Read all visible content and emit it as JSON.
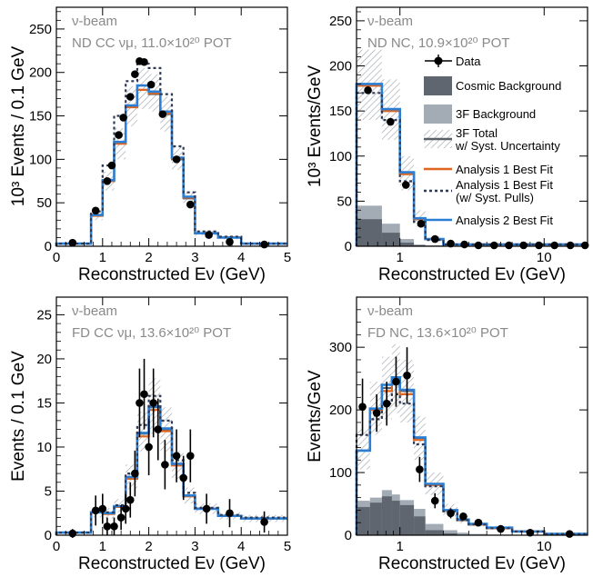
{
  "colors": {
    "data": "#000000",
    "cosmic": "#5f6670",
    "bkg3f": "#a3abb5",
    "band": "#9aa0a8",
    "total": "#5a6068",
    "a1": "#e0661f",
    "a1pull": "#2e3a55",
    "a2": "#2a7fd4",
    "annot": "#888888"
  },
  "legend": {
    "data": "Data",
    "cosmic": "Cosmic Background",
    "bkg3f": "3F Background",
    "total_line1": "3F Total",
    "total_line2": "w/ Syst. Uncertainty",
    "a1": "Analysis 1 Best Fit",
    "a1pull_line1": "Analysis 1 Best Fit",
    "a1pull_line2": "(w/ Syst. Pulls)",
    "a2": "Analysis 2 Best Fit"
  },
  "chart_data": [
    {
      "type": "histogram",
      "xscale": "linear",
      "xlim": [
        0,
        5
      ],
      "ylim": [
        0,
        275
      ],
      "xticks": [
        "0",
        "1",
        "2",
        "3",
        "4",
        "5"
      ],
      "xtick_vals": [
        0,
        1,
        2,
        3,
        4,
        5
      ],
      "yticks": [
        "0",
        "50",
        "100",
        "150",
        "200",
        "250"
      ],
      "ytick_vals": [
        0,
        50,
        100,
        150,
        200,
        250
      ],
      "ylabel": "10³ Events / 0.1 GeV",
      "xlabel": "Reconstructed Eν (GeV)",
      "annot1": "ν-beam",
      "annot2": "ND CC νμ, 11.0×10²⁰ POT",
      "edges": [
        0,
        0.75,
        1,
        1.25,
        1.5,
        1.75,
        2,
        2.25,
        2.5,
        2.75,
        3,
        3.5,
        4,
        5
      ],
      "total": [
        3,
        35,
        75,
        118,
        160,
        180,
        175,
        152,
        100,
        55,
        15,
        10,
        3
      ],
      "band_lo": [
        2,
        30,
        64,
        100,
        138,
        158,
        155,
        132,
        88,
        47,
        12,
        8,
        2
      ],
      "band_hi": [
        4,
        40,
        86,
        136,
        184,
        205,
        198,
        172,
        114,
        63,
        18,
        12,
        4
      ],
      "a1": [
        3,
        35,
        75,
        118,
        160,
        180,
        176,
        153,
        101,
        56,
        15,
        10,
        3
      ],
      "a1pull": [
        3,
        40,
        93,
        150,
        190,
        210,
        205,
        175,
        115,
        62,
        17,
        11,
        3
      ],
      "a2": [
        3,
        36,
        76,
        120,
        162,
        185,
        178,
        155,
        102,
        57,
        15,
        10,
        3
      ],
      "data_x": [
        0.35,
        0.85,
        1.1,
        1.2,
        1.35,
        1.45,
        1.6,
        1.7,
        1.8,
        1.9,
        2.05,
        2.3,
        2.6,
        2.9,
        3.3,
        3.75,
        4.5
      ],
      "data_y": [
        4,
        41,
        75,
        93,
        128,
        148,
        172,
        198,
        213,
        212,
        186,
        152,
        100,
        48,
        13,
        5,
        2
      ],
      "data_err": []
    },
    {
      "type": "histogram",
      "xscale": "log",
      "xlim": [
        0.5,
        20
      ],
      "ylim": [
        0,
        265
      ],
      "xticks": [
        "1",
        "10"
      ],
      "xtick_vals": [
        1,
        10
      ],
      "yticks": [
        "0",
        "50",
        "100",
        "150",
        "200",
        "250"
      ],
      "ytick_vals": [
        0,
        50,
        100,
        150,
        200,
        250
      ],
      "ylabel": "10³ Events/GeV",
      "xlabel": "Reconstructed Eν (GeV)",
      "annot1": "ν-beam",
      "annot2": "ND NC, 10.9×10²⁰ POT",
      "edges": [
        0.5,
        0.75,
        1.0,
        1.25,
        1.5,
        2.0,
        20
      ],
      "cosmic": [
        30,
        15,
        4,
        1,
        0,
        0
      ],
      "bkg3f": [
        45,
        25,
        8,
        2,
        1,
        0
      ],
      "total": [
        178,
        150,
        80,
        30,
        8,
        2
      ],
      "band_lo": [
        140,
        118,
        62,
        22,
        6,
        1
      ],
      "band_hi": [
        218,
        185,
        100,
        40,
        11,
        3
      ],
      "a1": [
        178,
        150,
        80,
        30,
        8,
        2
      ],
      "a1pull": [
        170,
        140,
        72,
        27,
        7,
        2
      ],
      "a2": [
        180,
        152,
        82,
        31,
        8,
        2
      ],
      "data_x": [
        0.6,
        0.86,
        1.1,
        1.4,
        1.75,
        2.25,
        2.8,
        3.5,
        4.5,
        5.7,
        7.2,
        9.2,
        11.8,
        15.2,
        19.2
      ],
      "data_y": [
        173,
        138,
        68,
        25,
        8,
        3,
        2,
        1,
        1,
        1,
        1,
        1,
        1,
        1,
        1
      ],
      "data_err": []
    },
    {
      "type": "histogram",
      "xscale": "linear",
      "xlim": [
        0,
        5
      ],
      "ylim": [
        0,
        27
      ],
      "xticks": [
        "0",
        "1",
        "2",
        "3",
        "4",
        "5"
      ],
      "xtick_vals": [
        0,
        1,
        2,
        3,
        4,
        5
      ],
      "yticks": [
        "0",
        "5",
        "10",
        "15",
        "20",
        "25"
      ],
      "ytick_vals": [
        0,
        5,
        10,
        15,
        20,
        25
      ],
      "ylabel": "Events / 0.1 GeV",
      "xlabel": "Reconstructed Eν (GeV)",
      "annot1": "ν-beam",
      "annot2": "FD CC νμ, 13.6×10²⁰ POT",
      "edges": [
        0,
        0.75,
        1,
        1.25,
        1.5,
        1.75,
        2,
        2.25,
        2.5,
        2.75,
        3,
        3.5,
        4,
        5
      ],
      "total": [
        0.3,
        2.6,
        2.5,
        3.3,
        6.5,
        11.5,
        14.5,
        12.0,
        8.0,
        4.5,
        3.0,
        2.2,
        1.9
      ],
      "band_lo": [
        0.2,
        2.0,
        1.9,
        2.6,
        5.2,
        9.5,
        11.5,
        9.5,
        6.4,
        3.6,
        2.4,
        1.8,
        1.5
      ],
      "band_hi": [
        0.4,
        3.2,
        3.1,
        4.1,
        8.0,
        14.0,
        17.8,
        14.5,
        9.6,
        5.4,
        3.6,
        2.6,
        2.3
      ],
      "a1": [
        0.3,
        2.6,
        2.4,
        3.2,
        6.4,
        11.2,
        14.2,
        11.8,
        7.9,
        4.4,
        3.0,
        2.2,
        1.9
      ],
      "a1pull": [
        0.3,
        2.8,
        2.6,
        3.4,
        7.0,
        12.5,
        15.8,
        13.0,
        8.5,
        4.8,
        3.1,
        2.3,
        2.0
      ],
      "a2": [
        0.3,
        2.6,
        2.5,
        3.3,
        6.6,
        11.6,
        14.6,
        12.1,
        8.1,
        4.5,
        3.0,
        2.2,
        1.9
      ],
      "data_x": [
        0.35,
        0.85,
        1.0,
        1.1,
        1.25,
        1.4,
        1.5,
        1.6,
        1.7,
        1.8,
        1.9,
        2.0,
        2.1,
        2.2,
        2.35,
        2.6,
        2.75,
        2.9,
        3.25,
        3.75,
        4.5
      ],
      "data_y": [
        0.2,
        2.8,
        3.0,
        1.0,
        1.0,
        2.0,
        3.0,
        4.0,
        7.0,
        15.0,
        16.0,
        10.0,
        15.0,
        12.0,
        8.0,
        9.0,
        6.5,
        9.0,
        3.0,
        2.5,
        1.5
      ],
      "data_err": [
        0.5,
        1.7,
        1.7,
        1.0,
        1.0,
        1.4,
        1.7,
        2.0,
        2.6,
        3.9,
        4.0,
        3.2,
        3.9,
        3.5,
        2.8,
        3.0,
        2.5,
        3.0,
        1.7,
        1.6,
        1.2
      ]
    },
    {
      "type": "histogram",
      "xscale": "log",
      "xlim": [
        0.5,
        20
      ],
      "ylim": [
        0,
        380
      ],
      "xticks": [
        "1",
        "10"
      ],
      "xtick_vals": [
        1,
        10
      ],
      "yticks": [
        "0",
        "100",
        "200",
        "300"
      ],
      "ytick_vals": [
        0,
        100,
        200,
        300
      ],
      "ylabel": "Events/GeV",
      "xlabel": "Reconstructed Eν (GeV)",
      "annot1": "ν-beam",
      "annot2": "FD NC, 13.6×10²⁰ POT",
      "edges": [
        0.5,
        0.62,
        0.75,
        0.88,
        1.0,
        1.25,
        1.5,
        2.0,
        2.5,
        3.0,
        4.0,
        6.0,
        10,
        20
      ],
      "cosmic": [
        45,
        52,
        62,
        55,
        48,
        30,
        8,
        3,
        1,
        0,
        0,
        0,
        0
      ],
      "bkg3f": [
        55,
        60,
        72,
        65,
        56,
        42,
        18,
        8,
        4,
        2,
        1,
        0,
        0
      ],
      "total": [
        135,
        200,
        235,
        250,
        230,
        155,
        82,
        40,
        25,
        18,
        12,
        6,
        2
      ],
      "band_lo": [
        105,
        160,
        185,
        195,
        180,
        120,
        64,
        30,
        19,
        14,
        9,
        5,
        1
      ],
      "band_hi": [
        170,
        245,
        285,
        305,
        280,
        190,
        100,
        50,
        31,
        22,
        15,
        8,
        3
      ],
      "a1": [
        135,
        200,
        230,
        245,
        225,
        152,
        80,
        39,
        24,
        17,
        11,
        6,
        2
      ],
      "a1pull": [
        160,
        185,
        210,
        225,
        210,
        145,
        78,
        38,
        24,
        17,
        11,
        6,
        2
      ],
      "a2": [
        135,
        202,
        240,
        252,
        232,
        156,
        82,
        40,
        25,
        18,
        12,
        6,
        2
      ],
      "data_x": [
        0.55,
        0.69,
        0.81,
        0.94,
        1.12,
        1.37,
        1.75,
        2.25,
        2.75,
        3.5,
        5.0,
        8.0,
        15.0
      ],
      "data_y": [
        205,
        195,
        210,
        245,
        255,
        105,
        55,
        35,
        30,
        20,
        10,
        4,
        2
      ],
      "data_err": [
        45,
        30,
        35,
        40,
        45,
        20,
        12,
        8,
        6,
        4,
        3,
        1.5,
        1
      ]
    }
  ]
}
